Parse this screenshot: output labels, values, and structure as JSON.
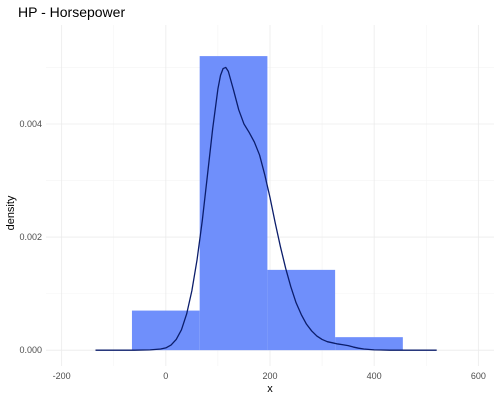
{
  "chart_data": {
    "type": "bar",
    "title": "HP - Horsepower",
    "xlabel": "x",
    "ylabel": "density",
    "xlim": [
      -230,
      630
    ],
    "ylim": [
      -0.00028,
      0.00575
    ],
    "x_ticks": [
      -200,
      0,
      200,
      400,
      600
    ],
    "x_tick_labels": [
      "-200",
      "0",
      "200",
      "400",
      "600"
    ],
    "y_ticks": [
      0,
      0.002,
      0.004
    ],
    "y_tick_labels": [
      "0.000",
      "0.002",
      "0.004"
    ],
    "grid": true,
    "histogram": {
      "bins": [
        {
          "x0": -65,
          "x1": 65,
          "density": 0.0007
        },
        {
          "x0": 65,
          "x1": 195,
          "density": 0.0052
        },
        {
          "x0": 195,
          "x1": 325,
          "density": 0.00142
        },
        {
          "x0": 325,
          "x1": 455,
          "density": 0.00023
        }
      ],
      "color": "#6f8ffb"
    },
    "density_curve": {
      "color": "#0b1d6b",
      "x": [
        -135,
        -100,
        -60,
        -30,
        -10,
        0,
        10,
        20,
        30,
        40,
        50,
        60,
        70,
        80,
        90,
        100,
        105,
        110,
        115,
        120,
        130,
        140,
        150,
        160,
        170,
        180,
        190,
        200,
        210,
        220,
        230,
        240,
        250,
        260,
        270,
        280,
        290,
        300,
        310,
        320,
        330,
        340,
        350,
        360,
        370,
        380,
        400,
        430,
        460,
        490,
        520
      ],
      "y": [
        0,
        0,
        0,
        5e-06,
        2e-05,
        4e-05,
        9e-05,
        0.00019,
        0.00036,
        0.00064,
        0.00105,
        0.0016,
        0.00229,
        0.0031,
        0.00392,
        0.00462,
        0.00486,
        0.00498,
        0.005,
        0.00493,
        0.0046,
        0.00425,
        0.004,
        0.00385,
        0.00368,
        0.00345,
        0.0031,
        0.0027,
        0.00225,
        0.00183,
        0.00145,
        0.00112,
        0.00084,
        0.00063,
        0.00046,
        0.00034,
        0.00025,
        0.00019,
        0.00015,
        0.00013,
        0.00011,
        9.5e-05,
        8e-05,
        5.5e-05,
        3.5e-05,
        2e-05,
        5e-06,
        0,
        0,
        0,
        0
      ]
    }
  }
}
